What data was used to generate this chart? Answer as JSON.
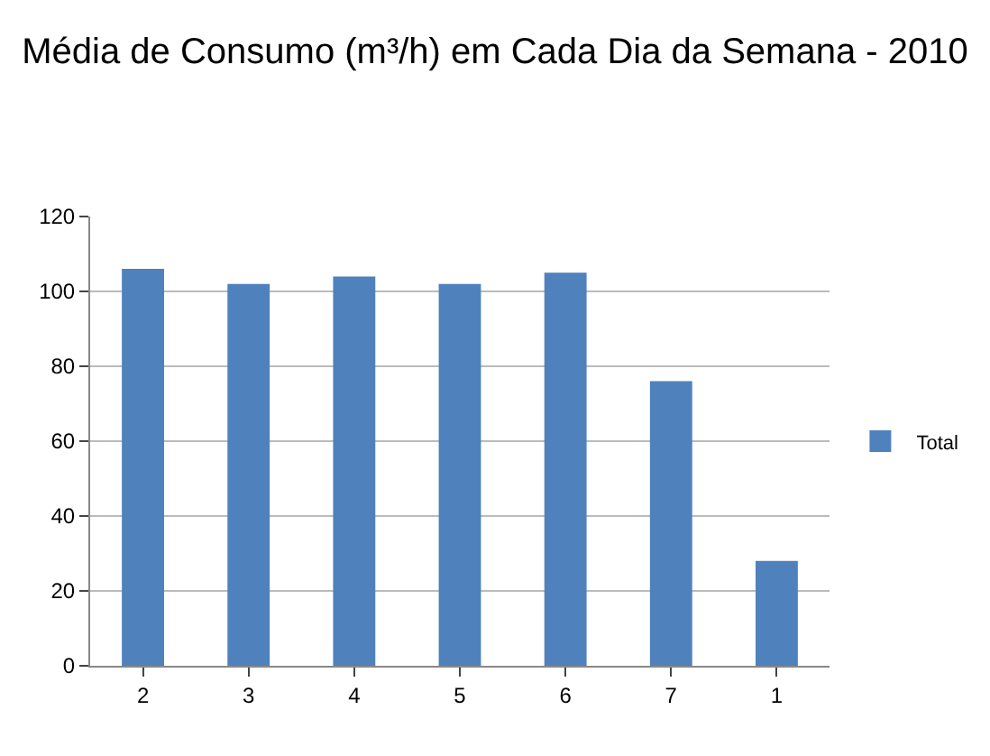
{
  "chart_data": {
    "type": "bar",
    "title": "Média de Consumo (m³/h) em Cada Dia da Semana - 2010",
    "categories": [
      "2",
      "3",
      "4",
      "5",
      "6",
      "7",
      "1"
    ],
    "series": [
      {
        "name": "Total",
        "color": "#4f81bd",
        "values": [
          106,
          102,
          104,
          102,
          105,
          76,
          28
        ]
      }
    ],
    "ylim": [
      0,
      120
    ],
    "yticks": [
      0,
      20,
      40,
      60,
      80,
      100,
      120
    ],
    "grid": "y",
    "legend": "right"
  }
}
